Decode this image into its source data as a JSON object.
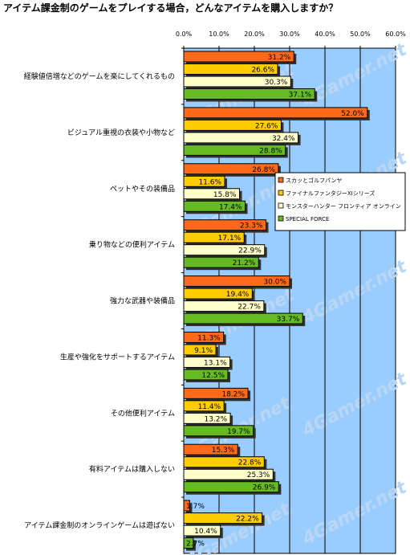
{
  "chart_data": {
    "type": "bar",
    "orientation": "horizontal",
    "title": "アイテム課金制のゲームをプレイする場合，どんなアイテムを購入しますか？",
    "xlim": [
      0,
      60
    ],
    "ticks": [
      "0.0%",
      "10.0%",
      "20.0%",
      "30.0%",
      "40.0%",
      "50.0%",
      "60.0%"
    ],
    "grid": true,
    "legend_position": "right",
    "categories": [
      "経験値倍増などのゲームを楽にしてくれるもの",
      "ビジュアル重視の衣装や小物など",
      "ペットやその装備品",
      "乗り物などの便利アイテム",
      "強力な武器や装備品",
      "生産や強化をサポートするアイテム",
      "その他便利アイテム",
      "有料アイテムは購入しない",
      "アイテム課金制のオンラインゲームは遊ばない"
    ],
    "series": [
      {
        "name": "スカッとゴルフパンヤ",
        "color": "#ff6a1a",
        "values": [
          31.2,
          52.0,
          26.8,
          23.3,
          30.0,
          11.3,
          18.2,
          15.3,
          1.7
        ],
        "labels": [
          "31.2%",
          "52.0%",
          "26.8%",
          "23.3%",
          "30.0%",
          "11.3%",
          "18.2%",
          "15.3%",
          "1.7%"
        ]
      },
      {
        "name": "ファイナルファンタジーXIシリーズ",
        "color": "#ffcc00",
        "values": [
          26.6,
          27.6,
          11.6,
          17.1,
          19.4,
          9.1,
          11.4,
          22.8,
          22.2
        ],
        "labels": [
          "26.6%",
          "27.6%",
          "11.6%",
          "17.1%",
          "19.4%",
          "9.1%",
          "11.4%",
          "22.8%",
          "22.2%"
        ]
      },
      {
        "name": "モンスターハンター フロンティア オンライン",
        "color": "#ffffcc",
        "values": [
          30.3,
          32.4,
          15.8,
          22.9,
          22.7,
          13.1,
          13.2,
          25.3,
          10.4
        ],
        "labels": [
          "30.3%",
          "32.4%",
          "15.8%",
          "22.9%",
          "22.7%",
          "13.1%",
          "13.2%",
          "25.3%",
          "10.4%"
        ]
      },
      {
        "name": "SPECIAL FORCE",
        "color": "#66bb22",
        "values": [
          37.1,
          28.8,
          17.4,
          21.2,
          33.7,
          12.5,
          19.7,
          26.9,
          2.7
        ],
        "labels": [
          "37.1%",
          "28.8%",
          "17.4%",
          "21.2%",
          "33.7%",
          "12.5%",
          "19.7%",
          "26.9%",
          "2.7%"
        ]
      }
    ],
    "plot_background": "#99ccff",
    "watermark": "4Gamer.net"
  }
}
